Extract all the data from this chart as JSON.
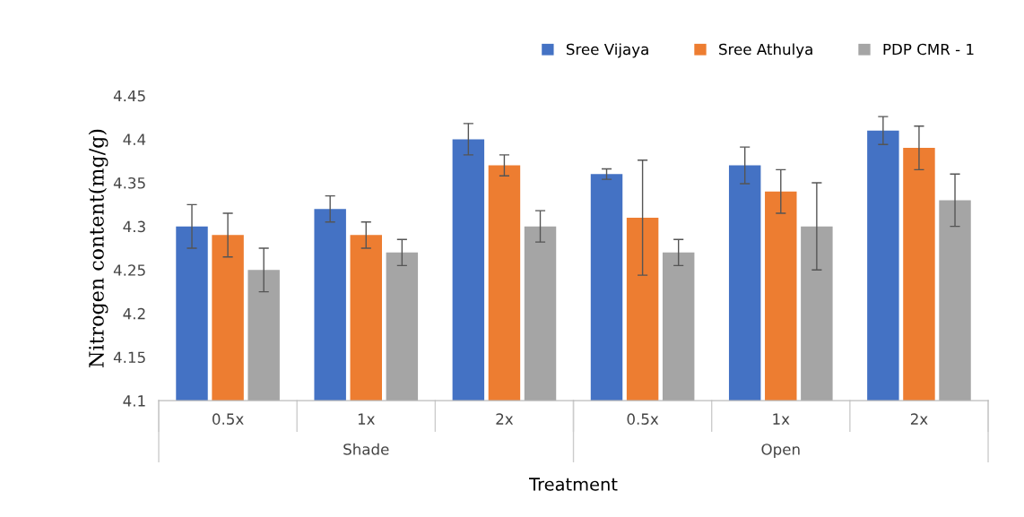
{
  "chart_data": {
    "type": "bar",
    "xlabel": "Treatment",
    "ylabel": "Nitrogen content(mg/g)",
    "categories": [
      "0.5x",
      "1x",
      "2x",
      "0.5x",
      "1x",
      "2x"
    ],
    "annotations": [
      "Shade",
      "Open"
    ],
    "series": [
      {
        "name": "Sree Vijaya",
        "color": "#4472c4",
        "values": [
          4.3,
          4.32,
          4.4,
          4.36,
          4.37,
          4.41
        ],
        "errors": [
          0.025,
          0.015,
          0.018,
          0.006,
          0.021,
          0.016
        ]
      },
      {
        "name": "Sree Athulya",
        "color": "#ed7d31",
        "values": [
          4.29,
          4.29,
          4.37,
          4.31,
          4.34,
          4.39
        ],
        "errors": [
          0.025,
          0.015,
          0.012,
          0.066,
          0.025,
          0.025
        ]
      },
      {
        "name": "PDP CMR - 1",
        "color": "#a5a5a5",
        "values": [
          4.25,
          4.27,
          4.3,
          4.27,
          4.3,
          4.33
        ],
        "errors": [
          0.025,
          0.015,
          0.018,
          0.015,
          0.05,
          0.03
        ]
      }
    ],
    "ylim": [
      4.1,
      4.45
    ],
    "yticks": [
      4.1,
      4.15,
      4.2,
      4.25,
      4.3,
      4.35,
      4.4,
      4.45
    ],
    "grid": false,
    "legend": "top right"
  }
}
